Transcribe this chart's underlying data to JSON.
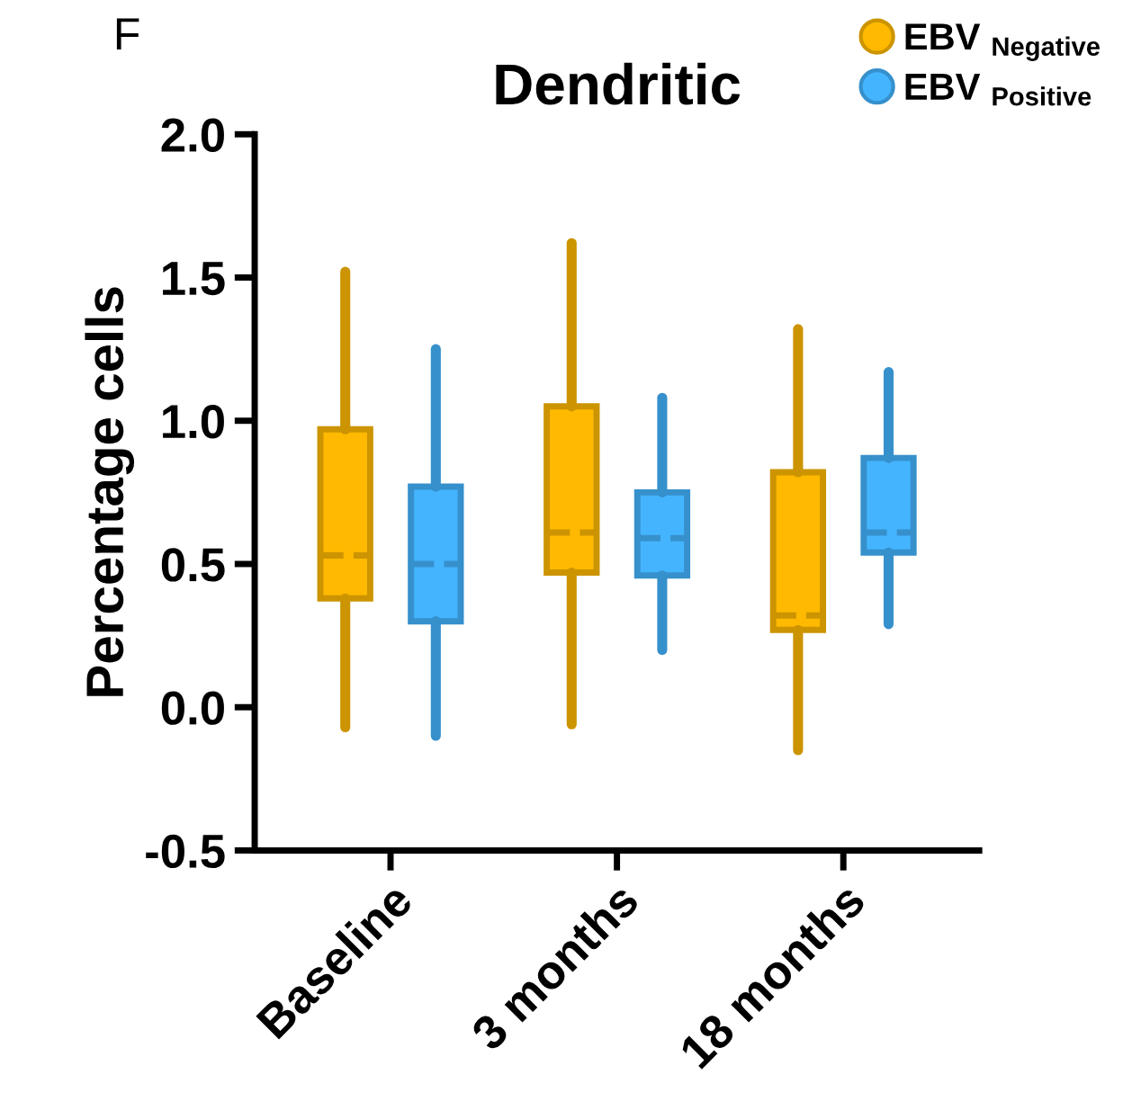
{
  "chart_data": {
    "type": "box",
    "title": "Dendritic",
    "ylabel": "Percentage cells",
    "categories": [
      "Baseline",
      "3 months",
      "18 months"
    ],
    "series": [
      {
        "name": "EBV $_{Negative}$",
        "color": "#ffb900",
        "boxes": [
          {
            "low": -0.07,
            "q1": 0.38,
            "median": 0.53,
            "q3": 0.97,
            "high": 1.52
          },
          {
            "low": -0.06,
            "q1": 0.47,
            "median": 0.61,
            "q3": 1.05,
            "high": 1.62
          },
          {
            "low": -0.15,
            "q1": 0.27,
            "median": 0.32,
            "q3": 0.82,
            "high": 1.32
          }
        ]
      },
      {
        "name": "EBV $_{Positive}$",
        "color": "#44b4ff",
        "boxes": [
          {
            "low": -0.1,
            "q1": 0.3,
            "median": 0.5,
            "q3": 0.77,
            "high": 1.25
          },
          {
            "low": 0.2,
            "q1": 0.46,
            "median": 0.59,
            "q3": 0.75,
            "high": 1.08
          },
          {
            "low": 0.29,
            "q1": 0.54,
            "median": 0.61,
            "q3": 0.87,
            "high": 1.17
          }
        ]
      }
    ],
    "ylim": [
      -0.5,
      2.0
    ],
    "yticks": [
      -0.5,
      {
        "value": 0,
        "label": "0.0"
      },
      0.5,
      {
        "value": 1,
        "label": "1.0"
      },
      1.5,
      {
        "value": 2,
        "label": "2.0"
      }
    ],
    "grid": false,
    "legend": "top right",
    "annotations": [
      "F"
    ]
  }
}
